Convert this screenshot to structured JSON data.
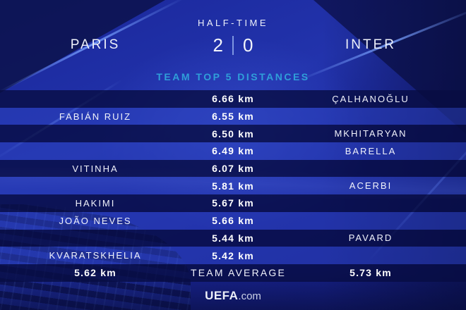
{
  "header": {
    "stage_label": "HALF-TIME",
    "home_team": "PARIS",
    "away_team": "INTER",
    "home_score": "2",
    "away_score": "0"
  },
  "section_title": "TEAM TOP 5 DISTANCES",
  "table": {
    "rows": [
      {
        "left": "",
        "value": "6.66 km",
        "right": "ÇALHANOĞLU"
      },
      {
        "left": "FABIÁN RUIZ",
        "value": "6.55 km",
        "right": ""
      },
      {
        "left": "",
        "value": "6.50 km",
        "right": "MKHITARYAN"
      },
      {
        "left": "",
        "value": "6.49 km",
        "right": "BARELLA"
      },
      {
        "left": "VITINHA",
        "value": "6.07 km",
        "right": ""
      },
      {
        "left": "",
        "value": "5.81 km",
        "right": "ACERBI"
      },
      {
        "left": "HAKIMI",
        "value": "5.67 km",
        "right": ""
      },
      {
        "left": "JOÃO NEVES",
        "value": "5.66 km",
        "right": ""
      },
      {
        "left": "",
        "value": "5.44 km",
        "right": "PAVARD"
      },
      {
        "left": "KVARATSKHELIA",
        "value": "5.42 km",
        "right": ""
      }
    ],
    "average_row": {
      "left": "5.62 km",
      "label": "TEAM AVERAGE",
      "right": "5.73 km"
    }
  },
  "footer": {
    "brand_bold": "UEFA",
    "brand_suffix": ".com"
  },
  "colors": {
    "background_blue": "#1d2c9c",
    "row_dark": "#0e1554",
    "row_light": "#2c42be",
    "accent_cyan": "#2f9fd9",
    "text_white": "#f2f4fa",
    "score_divider": "#7e96e0"
  },
  "chart_data": {
    "type": "table",
    "title": "TEAM TOP 5 DISTANCES",
    "context": "HALF-TIME PARIS 2-0 INTER",
    "columns": [
      "PARIS player",
      "Distance (km)",
      "INTER player"
    ],
    "rows": [
      [
        "",
        6.66,
        "ÇALHANOĞLU"
      ],
      [
        "FABIÁN RUIZ",
        6.55,
        ""
      ],
      [
        "",
        6.5,
        "MKHITARYAN"
      ],
      [
        "",
        6.49,
        "BARELLA"
      ],
      [
        "VITINHA",
        6.07,
        ""
      ],
      [
        "",
        5.81,
        "ACERBI"
      ],
      [
        "HAKIMI",
        5.67,
        ""
      ],
      [
        "JOÃO NEVES",
        5.66,
        ""
      ],
      [
        "",
        5.44,
        "PAVARD"
      ],
      [
        "KVARATSKHELIA",
        5.42,
        ""
      ]
    ],
    "team_average": {
      "PARIS": 5.62,
      "INTER": 5.73
    }
  }
}
